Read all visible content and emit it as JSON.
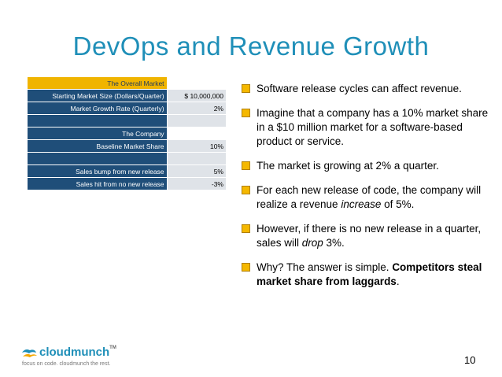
{
  "title": "DevOps and Revenue Growth",
  "table": {
    "rows": [
      {
        "label": "The Overall Market",
        "value": ""
      },
      {
        "label": "Starting Market Size (Dollars/Quarter)",
        "value": "$  10,000,000"
      },
      {
        "label": "Market Growth Rate (Quarterly)",
        "value": "2%"
      },
      {
        "label": "",
        "value": ""
      },
      {
        "label": "The Company",
        "value": ""
      },
      {
        "label": "Baseline Market Share",
        "value": "10%"
      },
      {
        "label": "",
        "value": ""
      },
      {
        "label": "Sales bump from new release",
        "value": "5%"
      },
      {
        "label": "Sales hit from no new release",
        "value": "-3%"
      }
    ]
  },
  "bullets": {
    "b1": "Software release cycles can affect revenue.",
    "b2": "Imagine that a company has a 10% market share in a $10 million market for a software-based product or service.",
    "b3": "The market is growing at 2% a quarter.",
    "b4_pre": "For each new release of code, the company will realize a revenue ",
    "b4_em": "increase",
    "b4_post": " of 5%.",
    "b5_pre": "However, if there is no new release in a quarter, sales will ",
    "b5_em": "drop",
    "b5_post": " 3%.",
    "b6_pre": "Why? The answer is simple.  ",
    "b6_strong": "Competitors steal market share from laggards",
    "b6_post": "."
  },
  "logo": {
    "name": "cloudmunch",
    "tm": "TM",
    "tagline": "focus on code. cloudmunch the rest."
  },
  "page_number": "10",
  "colors": {
    "title": "#1f8fb8",
    "table_label_bg": "#1f4e79",
    "table_head_bg": "#f0b400",
    "bullet_box": "#f5b800"
  }
}
